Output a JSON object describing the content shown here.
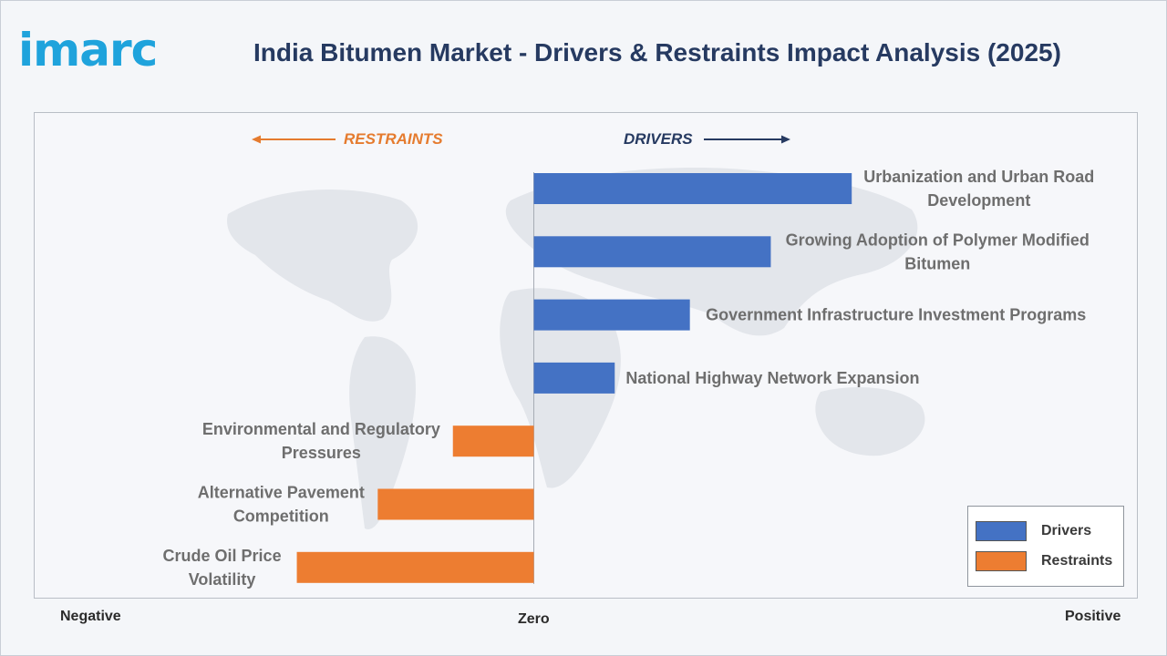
{
  "brand": {
    "logo_text": "imarc"
  },
  "title": "India Bitumen Market - Drivers & Restraints Impact Analysis (2025)",
  "directions": {
    "restraints": "RESTRAINTS",
    "drivers": "DRIVERS"
  },
  "axis_labels": {
    "negative": "Negative",
    "zero": "Zero",
    "positive": "Positive"
  },
  "legend": {
    "drivers": "Drivers",
    "restraints": "Restraints"
  },
  "colors": {
    "drivers": "#4472c4",
    "restraints": "#ed7d31",
    "title": "#263a61",
    "brand": "#1fa3dc",
    "restraints_text": "#e57b2e",
    "drivers_text": "#263a61"
  },
  "chart_data": {
    "type": "bar",
    "orientation": "horizontal",
    "title": "India Bitumen Market - Drivers & Restraints Impact Analysis (2025)",
    "x_range_labels": [
      "Negative",
      "Zero",
      "Positive"
    ],
    "xlim": [
      -1,
      1
    ],
    "legend_position": "bottom-right",
    "grid": false,
    "series": [
      {
        "name": "Drivers",
        "categories": [
          [
            "Urbanization and Urban Road",
            "Development"
          ],
          [
            "Growing Adoption of Polymer Modified",
            "Bitumen"
          ],
          [
            "Government Infrastructure Investment Programs"
          ],
          [
            "National Highway Network Expansion"
          ]
        ],
        "values": [
          0.55,
          0.41,
          0.27,
          0.14
        ]
      },
      {
        "name": "Restraints",
        "categories": [
          [
            "Environmental and Regulatory",
            "Pressures"
          ],
          [
            "Alternative Pavement",
            "Competition"
          ],
          [
            "Crude Oil Price",
            "Volatility"
          ]
        ],
        "values": [
          -0.14,
          -0.27,
          -0.41
        ]
      }
    ]
  }
}
